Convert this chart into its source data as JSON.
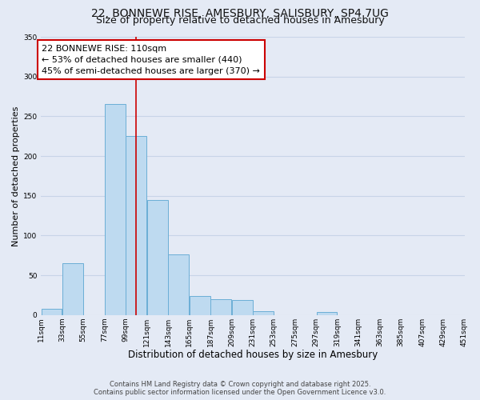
{
  "title_line1": "22, BONNEWE RISE, AMESBURY, SALISBURY, SP4 7UG",
  "title_line2": "Size of property relative to detached houses in Amesbury",
  "xlabel": "Distribution of detached houses by size in Amesbury",
  "ylabel": "Number of detached properties",
  "bar_left_edges": [
    11,
    33,
    55,
    77,
    99,
    121,
    143,
    165,
    187,
    209,
    231,
    253,
    275,
    297,
    319,
    341,
    363,
    385,
    407,
    429
  ],
  "bar_heights": [
    8,
    65,
    0,
    265,
    225,
    145,
    76,
    24,
    20,
    19,
    5,
    0,
    0,
    4,
    0,
    0,
    0,
    0,
    0,
    0
  ],
  "bar_color": "#bedaf0",
  "bar_edge_color": "#6baed6",
  "vline_x": 110,
  "vline_color": "#cc0000",
  "annotation_text": "22 BONNEWE RISE: 110sqm\n← 53% of detached houses are smaller (440)\n45% of semi-detached houses are larger (370) →",
  "annotation_box_facecolor": "#ffffff",
  "annotation_box_edgecolor": "#cc0000",
  "ylim": [
    0,
    350
  ],
  "yticks": [
    0,
    50,
    100,
    150,
    200,
    250,
    300,
    350
  ],
  "xtick_labels": [
    "11sqm",
    "33sqm",
    "55sqm",
    "77sqm",
    "99sqm",
    "121sqm",
    "143sqm",
    "165sqm",
    "187sqm",
    "209sqm",
    "231sqm",
    "253sqm",
    "275sqm",
    "297sqm",
    "319sqm",
    "341sqm",
    "363sqm",
    "385sqm",
    "407sqm",
    "429sqm",
    "451sqm"
  ],
  "xtick_positions": [
    11,
    33,
    55,
    77,
    99,
    121,
    143,
    165,
    187,
    209,
    231,
    253,
    275,
    297,
    319,
    341,
    363,
    385,
    407,
    429,
    451
  ],
  "grid_color": "#c8d4e8",
  "bg_color": "#e4eaf5",
  "footer_line1": "Contains HM Land Registry data © Crown copyright and database right 2025.",
  "footer_line2": "Contains public sector information licensed under the Open Government Licence v3.0.",
  "title_fontsize": 10,
  "subtitle_fontsize": 9,
  "annotation_fontsize": 8,
  "xlabel_fontsize": 8.5,
  "ylabel_fontsize": 8,
  "tick_fontsize": 6.5
}
